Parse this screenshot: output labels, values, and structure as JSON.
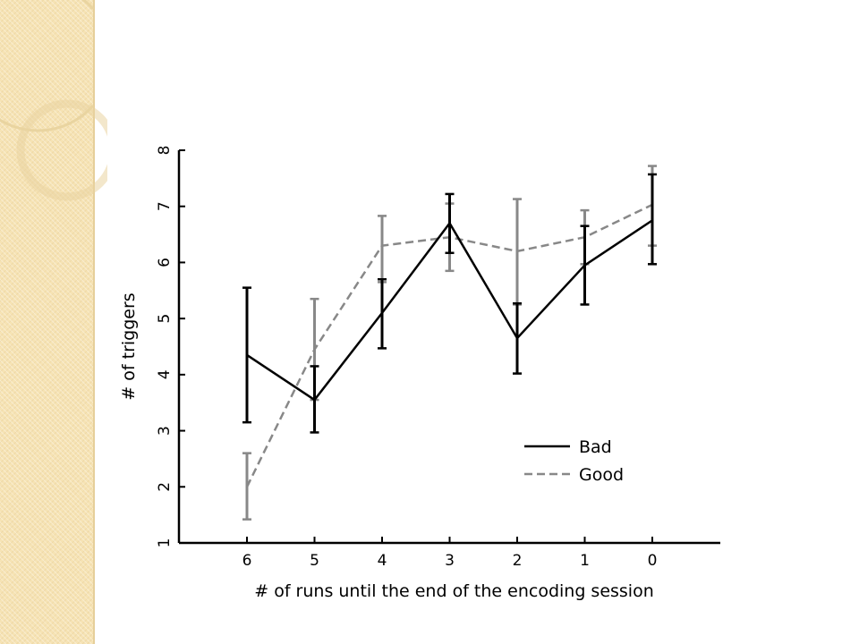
{
  "theme": {
    "sidebar_color": "#f6e3b4",
    "decoration_color": "#e9d4a0"
  },
  "chart_data": {
    "type": "line",
    "title": "",
    "xlabel": "# of runs until the end of the encoding session",
    "ylabel": "# of triggers",
    "categories": [
      "6",
      "5",
      "4",
      "3",
      "2",
      "1",
      "0"
    ],
    "ylim": [
      1,
      8
    ],
    "yticks": [
      1,
      2,
      3,
      4,
      5,
      6,
      7,
      8
    ],
    "grid": false,
    "legend_position": "bottom-right",
    "series": [
      {
        "name": "Bad",
        "color": "#000000",
        "dash": "solid",
        "values": [
          4.35,
          3.55,
          5.1,
          6.7,
          4.65,
          5.95,
          6.75
        ],
        "error_low": [
          3.15,
          2.97,
          4.47,
          6.17,
          4.02,
          5.25,
          5.97
        ],
        "error_high": [
          5.55,
          4.15,
          5.7,
          7.22,
          5.27,
          6.65,
          7.57
        ]
      },
      {
        "name": "Good",
        "color": "#888888",
        "dash": "dashed",
        "values": [
          2.0,
          4.45,
          6.3,
          6.45,
          6.2,
          6.45,
          7.03
        ],
        "error_low": [
          1.42,
          3.55,
          5.65,
          5.85,
          5.25,
          5.97,
          6.3
        ],
        "error_high": [
          2.6,
          5.35,
          6.83,
          7.05,
          7.13,
          6.93,
          7.72
        ]
      }
    ]
  }
}
